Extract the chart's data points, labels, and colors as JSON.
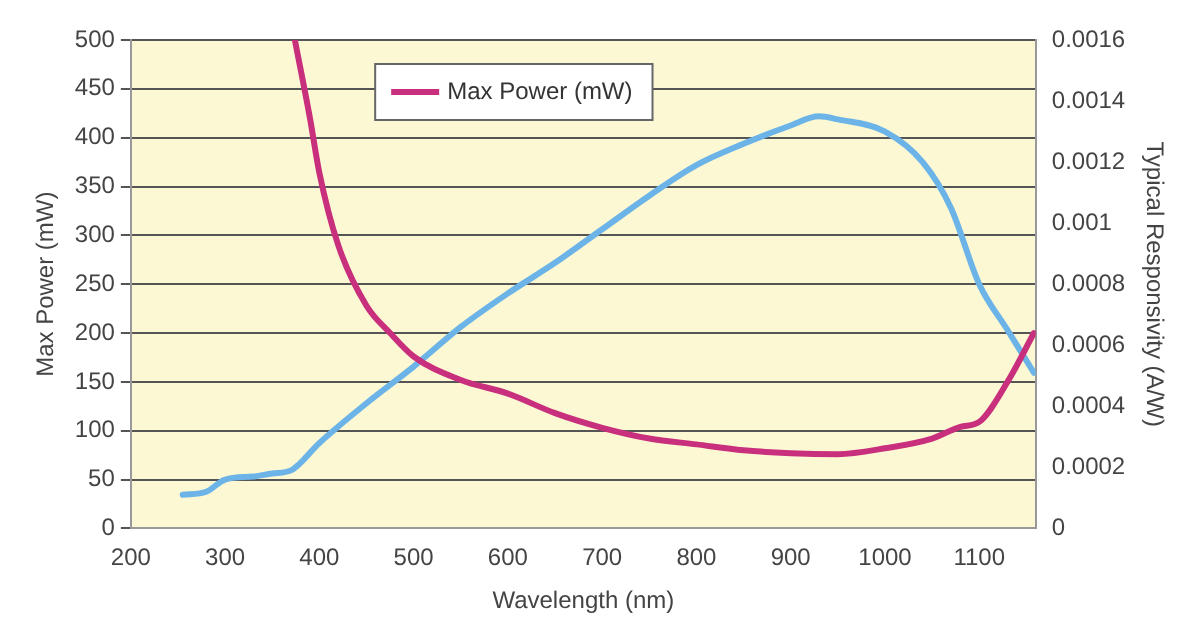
{
  "chart_data": {
    "type": "line",
    "xlabel": "Wavelength (nm)",
    "ylabel": "Max Power (mW)",
    "y2label": "Typical Responsivity (A/W)",
    "xlim": [
      200,
      1160
    ],
    "xticks": [
      200,
      300,
      400,
      500,
      600,
      700,
      800,
      900,
      1000,
      1100
    ],
    "ylim": [
      0,
      500
    ],
    "yticks": [
      0,
      50,
      100,
      150,
      200,
      250,
      300,
      350,
      400,
      450,
      500
    ],
    "y2lim": [
      0,
      0.0016
    ],
    "y2ticks": [
      0,
      0.0002,
      0.0004,
      0.0006,
      0.0008,
      0.001,
      0.0012,
      0.0014,
      0.0016
    ],
    "grid": "y",
    "legend": "top",
    "marker": "none",
    "line_style": "solid",
    "series": [
      {
        "name": "Max Power (mW)",
        "color": "#c8307e",
        "x": [
          374,
          390,
          400,
          420,
          450,
          475,
          500,
          550,
          600,
          650,
          700,
          750,
          800,
          850,
          900,
          950,
          1000,
          1050,
          1080,
          1100,
          1130,
          1158
        ],
        "values": [
          500,
          420,
          364,
          290,
          228,
          200,
          176,
          152,
          138,
          118,
          103,
          92,
          86,
          80,
          77,
          76,
          82,
          92,
          104,
          109,
          150,
          200
        ]
      },
      {
        "color": "#6cb4e8",
        "axis": "y2",
        "x": [
          255,
          280,
          300,
          330,
          350,
          370,
          400,
          450,
          500,
          550,
          600,
          650,
          700,
          750,
          800,
          850,
          900,
          930,
          950,
          1000,
          1040,
          1070,
          1100,
          1130,
          1158
        ],
        "values": [
          0.00011,
          0.00012,
          0.00016,
          0.00017,
          0.00018,
          0.00019,
          0.00028,
          0.00041,
          0.00053,
          0.00066,
          0.00077,
          0.00087,
          0.00098,
          0.00109,
          0.00119,
          0.00126,
          0.00132,
          0.00135,
          0.00134,
          0.0013,
          0.0012,
          0.00105,
          0.0008,
          0.00065,
          0.00051
        ]
      }
    ]
  }
}
